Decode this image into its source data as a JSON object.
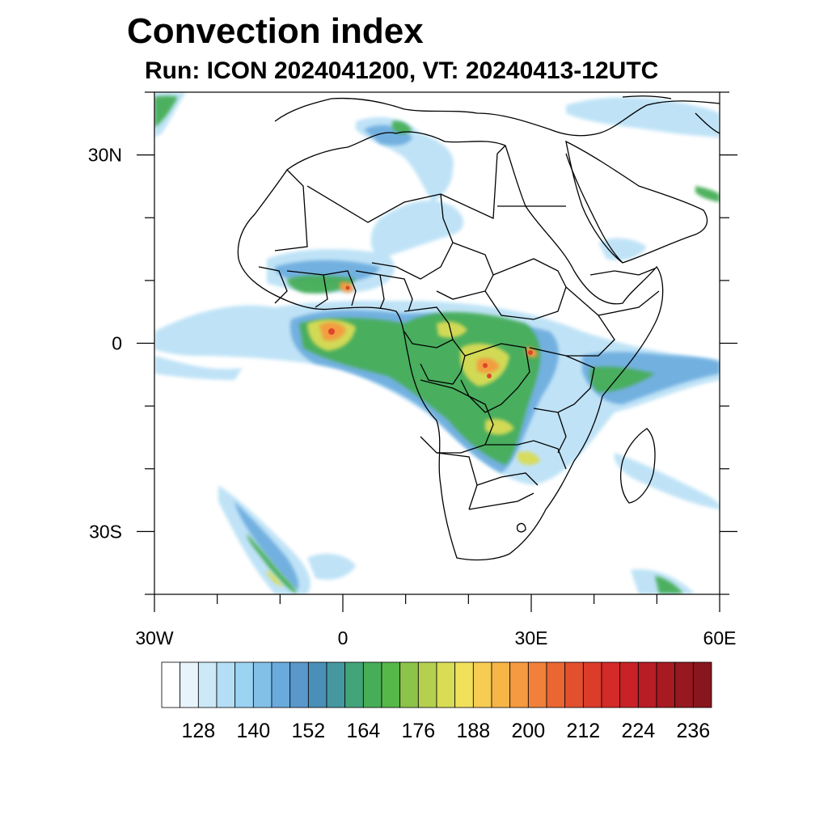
{
  "title": "Convection index",
  "subtitle": "Run: ICON 2024041200,  VT: 20240413-12UTC",
  "map": {
    "region": "Africa",
    "lon_range": [
      -30,
      60
    ],
    "lat_range": [
      -40,
      40
    ],
    "lat_ticks": [
      {
        "value": 30,
        "label": "30N"
      },
      {
        "value": 0,
        "label": "0"
      },
      {
        "value": -30,
        "label": "30S"
      }
    ],
    "lon_ticks": [
      {
        "value": -30,
        "label": "30W"
      },
      {
        "value": 0,
        "label": "0"
      },
      {
        "value": 30,
        "label": "30E"
      },
      {
        "value": 60,
        "label": "60E"
      }
    ],
    "minor_lat_ticks": [
      40,
      20,
      10,
      -10,
      -20,
      -40
    ],
    "minor_lon_ticks": [
      -20,
      -10,
      10,
      20,
      40,
      50
    ]
  },
  "colorbar": {
    "levels": [
      122,
      126,
      130,
      134,
      138,
      142,
      146,
      150,
      154,
      158,
      162,
      166,
      170,
      174,
      178,
      182,
      186,
      190,
      194,
      198,
      202,
      206,
      210,
      214,
      218,
      222,
      226,
      230,
      234,
      238,
      242
    ],
    "labels": [
      "128",
      "140",
      "152",
      "164",
      "176",
      "188",
      "200",
      "212",
      "224",
      "236"
    ],
    "colors": [
      "#ffffff",
      "#e8f4fb",
      "#cde8f6",
      "#b4def5",
      "#9bd3f2",
      "#82c0e8",
      "#6aabde",
      "#5a98cc",
      "#4a8fb8",
      "#4598a0",
      "#43a47a",
      "#47ae58",
      "#56b848",
      "#8cc44a",
      "#b5d04f",
      "#d9dc55",
      "#f0e05a",
      "#f7cc52",
      "#f7b548",
      "#f59a40",
      "#f0803a",
      "#ea6633",
      "#e3502e",
      "#dc3c2a",
      "#d42a28",
      "#c82226",
      "#b81c24",
      "#a81a22",
      "#981820",
      "#88161e"
    ]
  }
}
